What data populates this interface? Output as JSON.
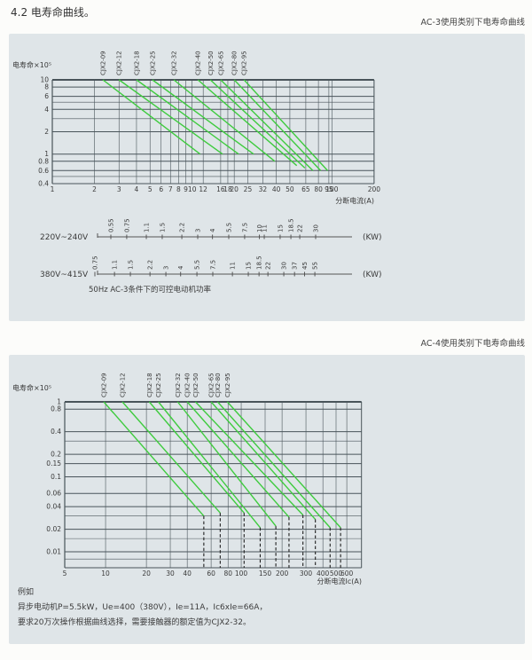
{
  "page": {
    "title": "4.2 电寿命曲线。",
    "ac3_caption": "AC-3使用类别下电寿命曲线",
    "ac4_caption": "AC-4使用类别下电寿命曲线"
  },
  "example": {
    "heading": "例如",
    "line1": "异步电动机P=5.5kW，Ue=400（380V），Ie=11A，Ic6xIe=66A，",
    "line2": "要求20万次操作根据曲线选择，需要接触器的额定值为CJX2-32。"
  },
  "colors": {
    "panel_bg": "#dfe5e8",
    "grid": "#49545a",
    "curve_green": "#3ecb3e",
    "dash": "#1f1f1f",
    "text": "#3a3a3a",
    "scale": "#555555"
  },
  "chart_data": [
    {
      "type": "line",
      "title": "AC-3使用类别下电寿命曲线",
      "ylabel": "电寿命×10⁵",
      "xlabel": "分断电流(A)",
      "x_scale": "log",
      "y_scale": "log",
      "xlim": [
        1,
        200
      ],
      "ylim": [
        0.4,
        10
      ],
      "grid": true,
      "x_ticks": [
        1,
        2,
        3,
        4,
        5,
        6,
        7,
        8,
        9,
        10,
        12,
        16,
        18,
        20,
        25,
        32,
        40,
        50,
        65,
        80,
        95,
        100,
        200
      ],
      "y_ticks": [
        10,
        8,
        6,
        4,
        2,
        1,
        0.8,
        0.6,
        0.4
      ],
      "y_minor": [
        5,
        3,
        0.5
      ],
      "series": [
        {
          "name": "CJX2-09",
          "points": [
            [
              2.3,
              10
            ],
            [
              11.4,
              1
            ]
          ]
        },
        {
          "name": "CJX2-12",
          "points": [
            [
              3.0,
              10
            ],
            [
              16.5,
              1
            ]
          ]
        },
        {
          "name": "CJX2-18",
          "points": [
            [
              4.0,
              10
            ],
            [
              21.5,
              1
            ]
          ]
        },
        {
          "name": "CJX2-25",
          "points": [
            [
              5.2,
              10
            ],
            [
              27.5,
              1
            ]
          ]
        },
        {
          "name": "CJX2-32",
          "points": [
            [
              7.4,
              10
            ],
            [
              39,
              0.8
            ]
          ]
        },
        {
          "name": "CJX2-40",
          "points": [
            [
              11,
              10
            ],
            [
              56,
              0.7
            ]
          ]
        },
        {
          "name": "CJX2-50",
          "points": [
            [
              13.5,
              10
            ],
            [
              64,
              0.65
            ]
          ]
        },
        {
          "name": "CJX2-65",
          "points": [
            [
              16,
              10
            ],
            [
              73,
              0.6
            ]
          ]
        },
        {
          "name": "CJX2-80",
          "points": [
            [
              20,
              10
            ],
            [
              83,
              0.6
            ]
          ]
        },
        {
          "name": "CJX2-95",
          "points": [
            [
              23.5,
              10
            ],
            [
              93,
              0.6
            ]
          ]
        }
      ],
      "power_scales": [
        {
          "label": "220V~240V",
          "unit": "(KW)",
          "values": [
            0.55,
            0.75,
            1.1,
            1.5,
            2.2,
            3,
            4,
            5.5,
            7.5,
            10,
            11,
            15,
            18.5,
            22,
            30
          ]
        },
        {
          "label": "380V~415V",
          "unit": "(KW)",
          "values": [
            0.75,
            1.1,
            1.5,
            2.2,
            3,
            4,
            5.5,
            7.5,
            11,
            15,
            18.5,
            22,
            30,
            37,
            45,
            55
          ]
        }
      ],
      "scale_caption": "50Hz  AC-3条件下的可控电动机功率"
    },
    {
      "type": "line",
      "title": "AC-4使用类别下电寿命曲线",
      "ylabel": "电寿命×10⁵",
      "xlabel": "分断电流Ic(A)",
      "x_scale": "log",
      "y_scale": "log",
      "xlim": [
        5,
        600
      ],
      "ylim": [
        0.01,
        1
      ],
      "grid": true,
      "x_ticks": [
        5,
        10,
        20,
        30,
        40,
        60,
        80,
        100,
        150,
        200,
        300,
        400,
        500,
        600
      ],
      "y_ticks": [
        1,
        0.8,
        0.4,
        0.2,
        0.15,
        0.1,
        0.06,
        0.04,
        0.02,
        0.01
      ],
      "y_minor": [
        0.3,
        0.03,
        0.015,
        0.008
      ],
      "series": [
        {
          "name": "CJX2-09",
          "points": [
            [
              9.7,
              1
            ],
            [
              53,
              0.03
            ]
          ],
          "drop": 53
        },
        {
          "name": "CJX2-12",
          "points": [
            [
              13.3,
              1
            ],
            [
              70,
              0.033
            ]
          ],
          "drop": 70
        },
        {
          "name": "CJX2-18",
          "points": [
            [
              21,
              1
            ],
            [
              105,
              0.033
            ]
          ],
          "drop": 105
        },
        {
          "name": "CJX2-25",
          "points": [
            [
              24.5,
              1
            ],
            [
              138,
              0.021
            ]
          ],
          "drop": 138
        },
        {
          "name": "CJX2-32",
          "points": [
            [
              34,
              1
            ],
            [
              180,
              0.022
            ]
          ],
          "drop": 180
        },
        {
          "name": "CJX2-40",
          "points": [
            [
              40,
              1
            ],
            [
              225,
              0.029
            ]
          ],
          "drop": 225
        },
        {
          "name": "CJX2-50",
          "points": [
            [
              46,
              1
            ],
            [
              285,
              0.031
            ]
          ],
          "drop": 285
        },
        {
          "name": "CJX2-65",
          "points": [
            [
              60,
              1
            ],
            [
              352,
              0.027
            ]
          ],
          "drop": 352
        },
        {
          "name": "CJX2-80",
          "points": [
            [
              67,
              1
            ],
            [
              452,
              0.021
            ]
          ],
          "drop": 452
        },
        {
          "name": "CJX2-95",
          "points": [
            [
              79,
              1
            ],
            [
              540,
              0.021
            ]
          ],
          "drop": 540
        }
      ]
    }
  ]
}
